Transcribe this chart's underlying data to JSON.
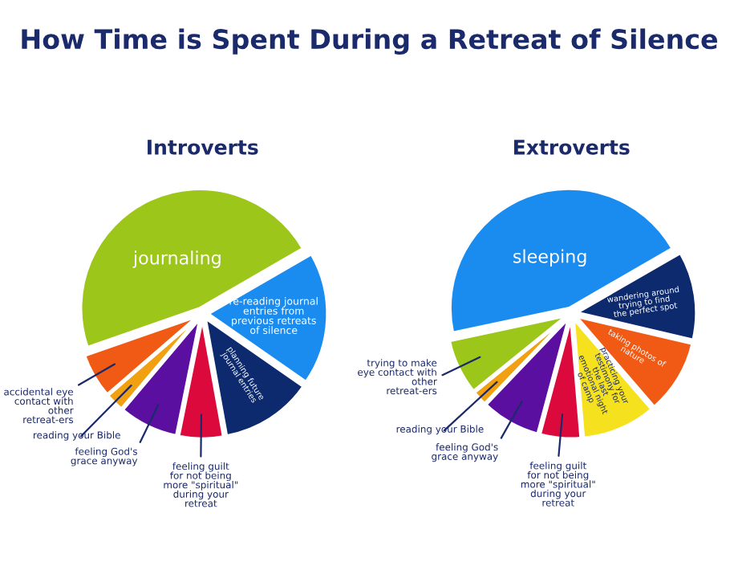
{
  "chart_data": [
    {
      "type": "pie",
      "title": "How Time is Spent During a Retreat of Silence",
      "subtitle": "Introverts",
      "categories": [
        "journaling",
        "accidental eye contact with other retreat-ers",
        "reading your Bible",
        "feeling God's grace anyway",
        "feeling guilt for not being more \"spiritual\" during your retreat",
        "planning future journal entries",
        "re-reading journal entries from previous retreats of silence"
      ],
      "values": [
        47,
        6,
        2.5,
        8,
        6,
        12.5,
        18
      ],
      "colors": [
        "#9dc61a",
        "#f05a14",
        "#f0a010",
        "#5a0fa0",
        "#dc0a3c",
        "#0d2a6e",
        "#1a8cf0"
      ]
    },
    {
      "type": "pie",
      "subtitle": "Extroverts",
      "categories": [
        "sleeping",
        "trying to make eye contact with other retreat-ers",
        "reading your Bible",
        "feeling God's grace anyway",
        "feeling guilt for not being more \"spiritual\" during your retreat",
        "practicing your testimony for the last emotional night of camp",
        "taking photos of nature",
        "wandering around trying to find the perfect spot"
      ],
      "values": [
        45,
        7.5,
        2,
        8,
        5.5,
        10,
        10,
        12
      ],
      "colors": [
        "#1a8cf0",
        "#9dc61a",
        "#f0a010",
        "#5a0fa0",
        "#dc0a3c",
        "#f5e11e",
        "#f05a14",
        "#0d2a6e"
      ]
    }
  ]
}
